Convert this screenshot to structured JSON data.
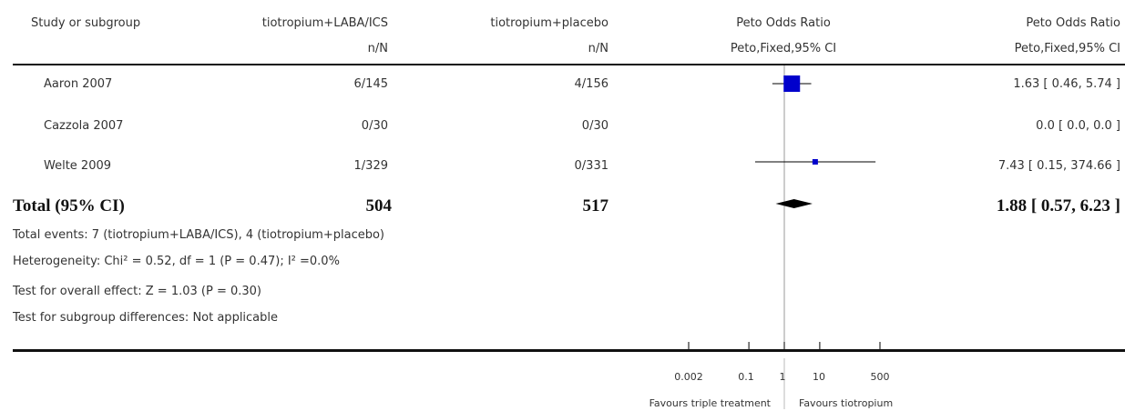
{
  "headers": {
    "study": "Study or subgroup",
    "exp": "tiotropium+LABA/ICS",
    "exp_sub": "n/N",
    "ctl": "tiotropium+placebo",
    "ctl_sub": "n/N",
    "plot": "Peto Odds Ratio",
    "plot_sub": "Peto,Fixed,95% CI",
    "est": "Peto Odds Ratio",
    "est_sub": "Peto,Fixed,95% CI"
  },
  "rows": [
    {
      "study": "Aaron 2007",
      "exp": "6/145",
      "ctl": "4/156",
      "ci": "1.63 [ 0.46, 5.74 ]"
    },
    {
      "study": "Cazzola 2007",
      "exp": "0/30",
      "ctl": "0/30",
      "ci": "0.0 [ 0.0, 0.0 ]"
    },
    {
      "study": "Welte 2009",
      "exp": "1/329",
      "ctl": "0/331",
      "ci": "7.43 [ 0.15, 374.66 ]"
    }
  ],
  "total": {
    "label": "Total (95% CI)",
    "exp": "504",
    "ctl": "517",
    "ci": "1.88 [ 0.57, 6.23 ]"
  },
  "footnotes": {
    "events": "Total events: 7 (tiotropium+LABA/ICS), 4 (tiotropium+placebo)",
    "heterogeneity": "Heterogeneity: Chi² = 0.52, df = 1 (P = 0.47); I² =0.0%",
    "overall": "Test for overall effect: Z = 1.03 (P = 0.30)",
    "subgroup": "Test for subgroup differences: Not applicable"
  },
  "axis": {
    "ticks": [
      "0.002",
      "0.1",
      "1",
      "10",
      "500"
    ],
    "favours_left": "Favours triple treatment",
    "favours_right": "Favours tiotropium"
  },
  "chart_data": {
    "type": "forest",
    "scale": "log",
    "xlim": [
      0.002,
      500
    ],
    "ticks": [
      0.002,
      0.1,
      1,
      10,
      500
    ],
    "studies": [
      {
        "name": "Aaron 2007",
        "or": 1.63,
        "lo": 0.46,
        "hi": 5.74
      },
      {
        "name": "Cazzola 2007",
        "or": null,
        "lo": null,
        "hi": null
      },
      {
        "name": "Welte 2009",
        "or": 7.43,
        "lo": 0.15,
        "hi": 374.66
      }
    ],
    "total": {
      "or": 1.88,
      "lo": 0.57,
      "hi": 6.23
    },
    "colors": {
      "marker": "#0000cc",
      "diamond": "#000000",
      "axis": "#000000",
      "null_line": "#999999"
    }
  }
}
